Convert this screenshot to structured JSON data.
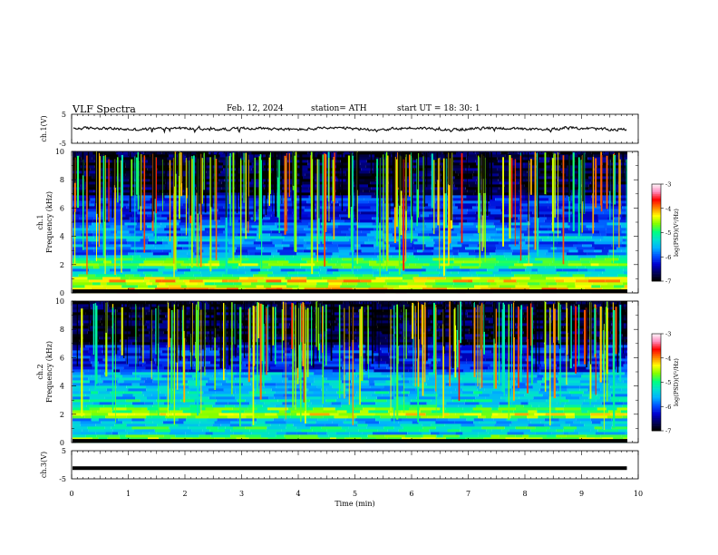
{
  "header": {
    "title": "VLF  Spectra",
    "date": "Feb. 12, 2024",
    "station": "station= ATH",
    "start": "start  UT  =    18: 30: 1"
  },
  "colors": {
    "waveform": "#111111",
    "ch3_trace": "#000000",
    "frame": "#000000",
    "colormap": [
      "#000000",
      "#000060",
      "#0000d0",
      "#0050ff",
      "#00b0ff",
      "#00e0d0",
      "#00ff80",
      "#80ff00",
      "#ffff00",
      "#ff8000",
      "#ff0000",
      "#ff90c0",
      "#ffffff"
    ]
  },
  "chart_data": [
    {
      "type": "line",
      "name": "ch1-waveform",
      "ylabel": "ch.1(V)",
      "ylim": [
        -5,
        5
      ],
      "y_ticks": [
        "5",
        "-5"
      ],
      "xlim": [
        0,
        10
      ],
      "trace": {
        "mean": 0.0,
        "amplitude": 0.6,
        "spikes": 1.5
      }
    },
    {
      "type": "heatmap",
      "name": "ch1-spectrogram",
      "ylabel": "ch.1\nFrequency (kHz)",
      "ylim": [
        0,
        10
      ],
      "y_ticks": [
        "0",
        "2",
        "4",
        "6",
        "8",
        "10"
      ],
      "xlim": [
        0,
        9.8
      ],
      "colorbar": {
        "label": "log(PSD)(V²/Hz)",
        "range": [
          -7,
          -3
        ],
        "ticks": [
          "-3",
          "-4",
          "-5",
          "-6",
          "-7"
        ]
      },
      "bands": [
        {
          "f": 0.2,
          "level": -4.0
        },
        {
          "f": 0.5,
          "level": -4.5
        },
        {
          "f": 0.9,
          "level": -4.2
        },
        {
          "f": 1.3,
          "level": -5.0
        },
        {
          "f": 2.05,
          "level": -4.6
        },
        {
          "f": 2.4,
          "level": -5.0
        },
        {
          "f": 3.9,
          "level": -5.4
        },
        {
          "f": 4.8,
          "level": -5.6
        }
      ]
    },
    {
      "type": "heatmap",
      "name": "ch2-spectrogram",
      "ylabel": "ch.2\nFrequency (kHz)",
      "ylim": [
        0,
        10
      ],
      "y_ticks": [
        "0",
        "2",
        "4",
        "6",
        "8",
        "10"
      ],
      "xlim": [
        0,
        9.8
      ],
      "colorbar": {
        "label": "log(PSD)(V²/Hz)",
        "range": [
          -7,
          -3
        ],
        "ticks": [
          "-3",
          "-4",
          "-5",
          "-6",
          "-7"
        ]
      },
      "bands": [
        {
          "f": 0.3,
          "level": -4.6
        },
        {
          "f": 1.0,
          "level": -5.0
        },
        {
          "f": 2.0,
          "level": -4.4
        },
        {
          "f": 2.4,
          "level": -4.8
        },
        {
          "f": 3.0,
          "level": -5.2
        },
        {
          "f": 3.6,
          "level": -5.3
        },
        {
          "f": 4.6,
          "level": -5.5
        }
      ]
    },
    {
      "type": "line",
      "name": "ch3-waveform",
      "ylabel": "ch.3(V)",
      "xlabel": "Time  (min)",
      "ylim": [
        -5,
        5
      ],
      "y_ticks": [
        "5",
        "-5"
      ],
      "xlim": [
        0,
        10
      ],
      "x_ticks": [
        "0",
        "1",
        "2",
        "3",
        "4",
        "5",
        "6",
        "7",
        "8",
        "9",
        "10"
      ],
      "trace": {
        "value": -1.2,
        "xend": 9.8
      }
    }
  ]
}
